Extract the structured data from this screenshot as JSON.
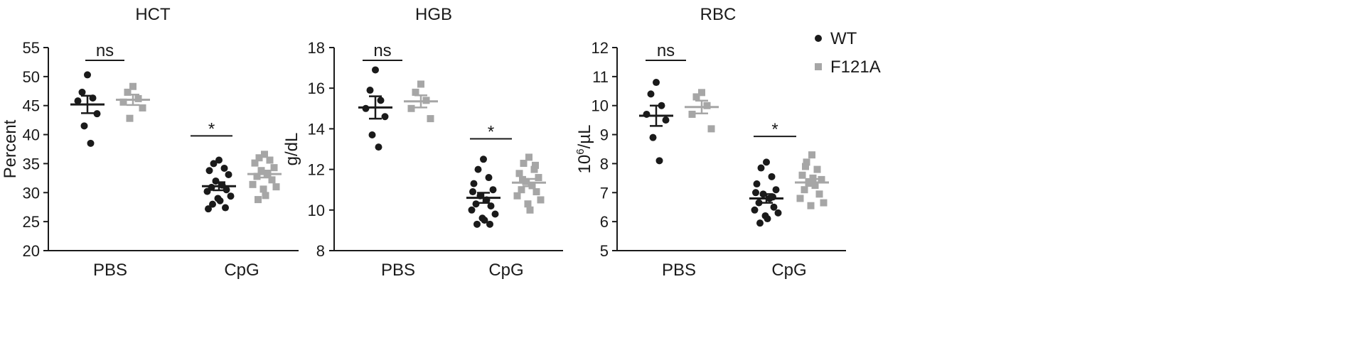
{
  "legend": [
    {
      "label": "WT",
      "color": "#1a1a1a",
      "shape": "circle"
    },
    {
      "label": "F121A",
      "color": "#a6a6a6",
      "shape": "square"
    }
  ],
  "chart_data": [
    {
      "type": "scatter",
      "title": "HCT",
      "ylabel": "Percent",
      "ylabel_html": false,
      "ylim": [
        20,
        55
      ],
      "yticks": [
        20,
        25,
        30,
        35,
        40,
        45,
        50,
        55
      ],
      "categories": [
        "PBS",
        "CpG"
      ],
      "series": [
        {
          "name": "WT",
          "color": "#1a1a1a",
          "groups": [
            {
              "values": [
                50.3,
                47.3,
                46.3,
                45.8,
                43.6,
                41.5,
                38.5
              ],
              "mean": 45.2,
              "sem": 1.5
            },
            {
              "values": [
                35.6,
                35.0,
                34.2,
                33.8,
                33.1,
                32.0,
                31.3,
                30.9,
                30.5,
                30.2,
                29.4,
                29.0,
                28.6,
                28.0,
                27.4,
                27.2
              ],
              "mean": 31.1,
              "sem": 0.7
            }
          ]
        },
        {
          "name": "F121A",
          "color": "#a6a6a6",
          "groups": [
            {
              "values": [
                48.3,
                47.3,
                46.2,
                45.6,
                44.6,
                42.8
              ],
              "mean": 46.0,
              "sem": 0.9
            },
            {
              "values": [
                36.6,
                36.0,
                35.6,
                35.1,
                34.3,
                33.8,
                33.2,
                32.8,
                32.2,
                31.4,
                31.0,
                30.6,
                29.5,
                28.8
              ],
              "mean": 33.2,
              "sem": 0.6
            }
          ]
        }
      ],
      "annotations": [
        {
          "text": "ns",
          "group": 0
        },
        {
          "text": "*",
          "group": 1
        }
      ]
    },
    {
      "type": "scatter",
      "title": "HGB",
      "ylabel": "g/dL",
      "ylim": [
        8,
        18
      ],
      "yticks": [
        8,
        10,
        12,
        14,
        16,
        18
      ],
      "categories": [
        "PBS",
        "CpG"
      ],
      "series": [
        {
          "name": "WT",
          "color": "#1a1a1a",
          "groups": [
            {
              "values": [
                16.9,
                15.9,
                15.4,
                15.0,
                14.6,
                13.7,
                13.1
              ],
              "mean": 15.05,
              "sem": 0.55
            },
            {
              "values": [
                12.5,
                12.0,
                11.6,
                11.3,
                11.0,
                10.7,
                10.5,
                10.3,
                10.2,
                10.0,
                9.8,
                9.6,
                9.5,
                9.3,
                9.3,
                10.9
              ],
              "mean": 10.6,
              "sem": 0.25
            }
          ]
        },
        {
          "name": "F121A",
          "color": "#a6a6a6",
          "groups": [
            {
              "values": [
                16.2,
                15.8,
                15.4,
                15.0,
                14.5
              ],
              "mean": 15.35,
              "sem": 0.3
            },
            {
              "values": [
                12.6,
                12.3,
                12.0,
                11.8,
                11.6,
                11.4,
                11.2,
                11.0,
                10.9,
                10.7,
                10.5,
                10.3,
                10.0,
                11.5,
                12.2
              ],
              "mean": 11.35,
              "sem": 0.18
            }
          ]
        }
      ],
      "annotations": [
        {
          "text": "ns",
          "group": 0
        },
        {
          "text": "*",
          "group": 1
        }
      ]
    },
    {
      "type": "scatter",
      "title": "RBC",
      "ylabel": "10^6/µL",
      "ylabel_base": "10",
      "ylabel_exp": "6",
      "ylabel_unit": "/µL",
      "ylim": [
        5,
        12
      ],
      "yticks": [
        5,
        6,
        7,
        8,
        9,
        10,
        11,
        12
      ],
      "categories": [
        "PBS",
        "CpG"
      ],
      "series": [
        {
          "name": "WT",
          "color": "#1a1a1a",
          "groups": [
            {
              "values": [
                10.8,
                10.4,
                10.0,
                9.7,
                9.5,
                8.9,
                8.1
              ],
              "mean": 9.65,
              "sem": 0.35
            },
            {
              "values": [
                8.05,
                7.85,
                7.55,
                7.3,
                7.1,
                6.95,
                6.8,
                6.65,
                6.5,
                6.4,
                6.3,
                6.2,
                6.1,
                5.95,
                6.85,
                7.0
              ],
              "mean": 6.8,
              "sem": 0.15
            }
          ]
        },
        {
          "name": "F121A",
          "color": "#a6a6a6",
          "groups": [
            {
              "values": [
                10.45,
                10.3,
                10.0,
                9.7,
                9.2
              ],
              "mean": 9.95,
              "sem": 0.22
            },
            {
              "values": [
                8.3,
                8.05,
                7.8,
                7.6,
                7.45,
                7.35,
                7.25,
                7.1,
                6.95,
                6.8,
                6.65,
                6.55,
                7.5,
                7.9
              ],
              "mean": 7.35,
              "sem": 0.12
            }
          ]
        }
      ],
      "annotations": [
        {
          "text": "ns",
          "group": 0
        },
        {
          "text": "*",
          "group": 1
        }
      ]
    }
  ]
}
